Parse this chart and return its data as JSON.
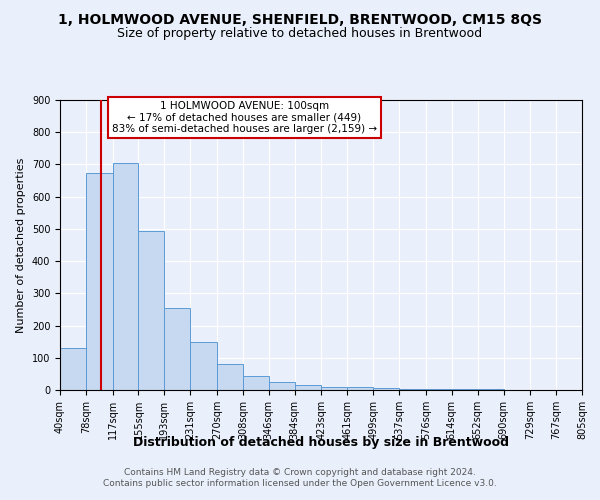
{
  "title": "1, HOLMWOOD AVENUE, SHENFIELD, BRENTWOOD, CM15 8QS",
  "subtitle": "Size of property relative to detached houses in Brentwood",
  "xlabel": "Distribution of detached houses by size in Brentwood",
  "ylabel": "Number of detached properties",
  "footer_line1": "Contains HM Land Registry data © Crown copyright and database right 2024.",
  "footer_line2": "Contains public sector information licensed under the Open Government Licence v3.0.",
  "bar_edges": [
    40,
    78,
    117,
    155,
    193,
    231,
    270,
    308,
    346,
    384,
    423,
    461,
    499,
    537,
    576,
    614,
    652,
    690,
    729,
    767,
    805
  ],
  "bar_heights": [
    130,
    675,
    705,
    495,
    255,
    150,
    80,
    45,
    25,
    15,
    10,
    8,
    5,
    4,
    3,
    2,
    2,
    1,
    1,
    1
  ],
  "bar_color": "#c6d9f1",
  "bar_edge_color": "#5b9bd5",
  "property_line_x": 100,
  "annotation_text": "1 HOLMWOOD AVENUE: 100sqm\n← 17% of detached houses are smaller (449)\n83% of semi-detached houses are larger (2,159) →",
  "annotation_box_color": "#ffffff",
  "annotation_box_edge": "#cc0000",
  "vline_color": "#cc0000",
  "ylim": [
    0,
    900
  ],
  "yticks": [
    0,
    100,
    200,
    300,
    400,
    500,
    600,
    700,
    800,
    900
  ],
  "bg_color": "#eaf0fb",
  "grid_color": "#ffffff",
  "title_fontsize": 10,
  "subtitle_fontsize": 9,
  "xlabel_fontsize": 9,
  "ylabel_fontsize": 8,
  "tick_fontsize": 7,
  "annotation_fontsize": 7.5,
  "footer_fontsize": 6.5
}
